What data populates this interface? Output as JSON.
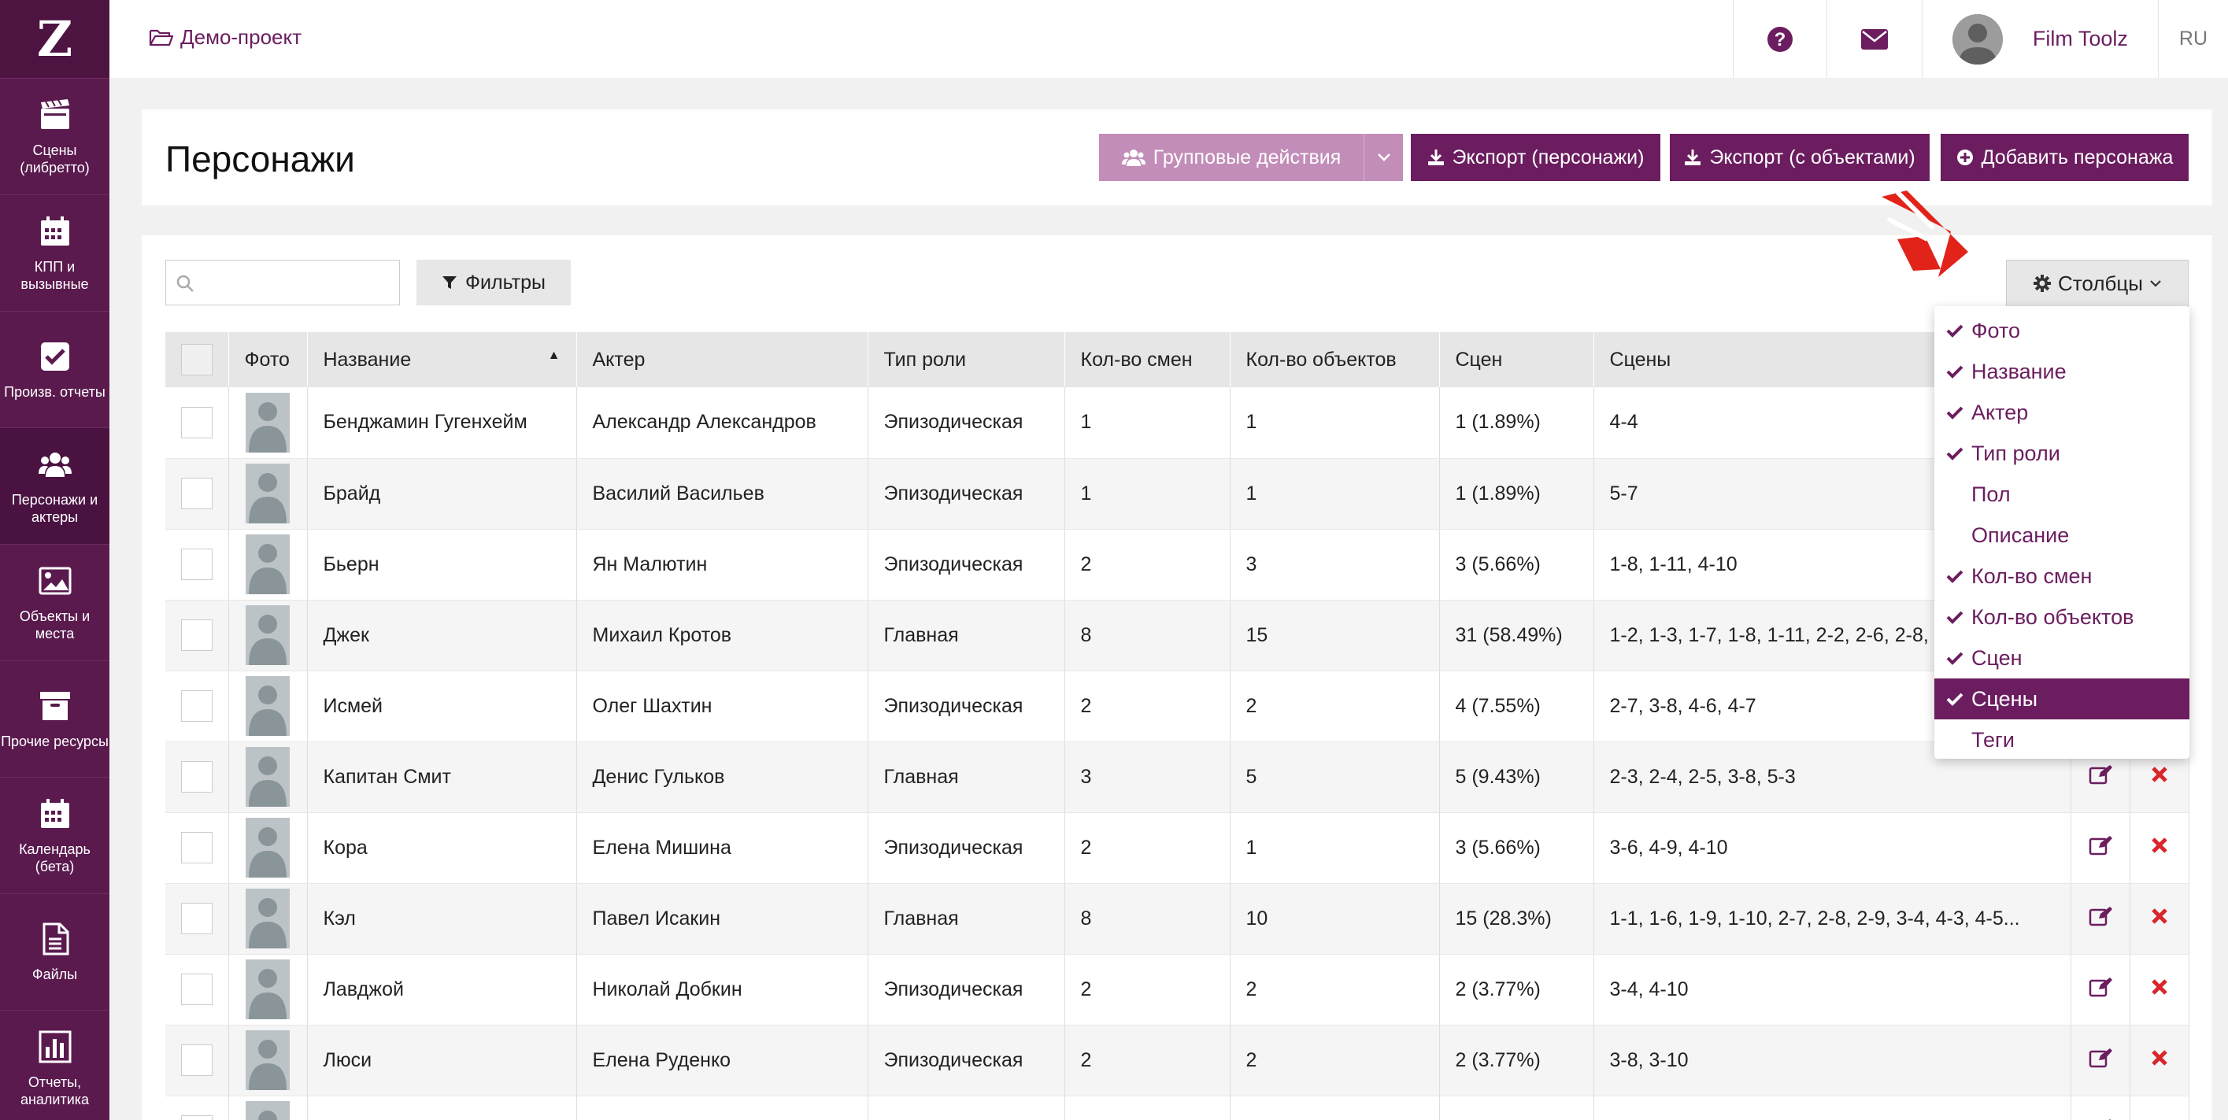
{
  "sidebar": {
    "logo": "Z",
    "items": [
      {
        "label": "Сцены (либретто)",
        "icon": "clapperboard-icon"
      },
      {
        "label": "КПП и вызывные",
        "icon": "calendar-icon"
      },
      {
        "label": "Произв. отчеты",
        "icon": "checkbox-icon"
      },
      {
        "label": "Персонажи и актеры",
        "icon": "users-icon"
      },
      {
        "label": "Объекты и места",
        "icon": "image-icon"
      },
      {
        "label": "Прочие ресурсы",
        "icon": "archive-icon"
      },
      {
        "label": "Календарь (бета)",
        "icon": "calendar-icon"
      },
      {
        "label": "Файлы",
        "icon": "file-icon"
      },
      {
        "label": "Отчеты, аналитика",
        "icon": "bar-chart-icon"
      }
    ]
  },
  "topbar": {
    "project": "Демо-проект",
    "username": "Film Toolz",
    "lang": "RU"
  },
  "header": {
    "title": "Персонажи",
    "group_actions": "Групповые действия",
    "export_characters": "Экспорт (персонажи)",
    "export_objects": "Экспорт (с объектами)",
    "add_character": "Добавить персонажа"
  },
  "toolbar": {
    "search_placeholder": "",
    "filters": "Фильтры",
    "columns": "Столбцы"
  },
  "table": {
    "headers": {
      "photo": "Фото",
      "name": "Название",
      "actor": "Актер",
      "role": "Тип роли",
      "shifts": "Кол-во смен",
      "objects": "Кол-во объектов",
      "scene_count": "Сцен",
      "scenes": "Сцены"
    },
    "rows": [
      {
        "name": "Бенджамин Гугенхейм",
        "actor": "Александр Александров",
        "role": "Эпизодическая",
        "shifts": "1",
        "objects": "1",
        "scene_count": "1 (1.89%)",
        "scenes": "4-4"
      },
      {
        "name": "Брайд",
        "actor": "Василий Васильев",
        "role": "Эпизодическая",
        "shifts": "1",
        "objects": "1",
        "scene_count": "1 (1.89%)",
        "scenes": "5-7"
      },
      {
        "name": "Бьерн",
        "actor": "Ян Малютин",
        "role": "Эпизодическая",
        "shifts": "2",
        "objects": "3",
        "scene_count": "3 (5.66%)",
        "scenes": "1-8, 1-11, 4-10"
      },
      {
        "name": "Джек",
        "actor": "Михаил Кротов",
        "role": "Главная",
        "shifts": "8",
        "objects": "15",
        "scene_count": "31 (58.49%)",
        "scenes": "1-2, 1-3, 1-7, 1-8, 1-11, 2-2, 2-6, 2-8, 3-2, 3-..."
      },
      {
        "name": "Исмей",
        "actor": "Олег Шахтин",
        "role": "Эпизодическая",
        "shifts": "2",
        "objects": "2",
        "scene_count": "4 (7.55%)",
        "scenes": "2-7, 3-8, 4-6, 4-7"
      },
      {
        "name": "Капитан Смит",
        "actor": "Денис Гульков",
        "role": "Главная",
        "shifts": "3",
        "objects": "5",
        "scene_count": "5 (9.43%)",
        "scenes": "2-3, 2-4, 2-5, 3-8, 5-3"
      },
      {
        "name": "Кора",
        "actor": "Елена Мишина",
        "role": "Эпизодическая",
        "shifts": "2",
        "objects": "1",
        "scene_count": "3 (5.66%)",
        "scenes": "3-6, 4-9, 4-10"
      },
      {
        "name": "Кэл",
        "actor": "Павел Исакин",
        "role": "Главная",
        "shifts": "8",
        "objects": "10",
        "scene_count": "15 (28.3%)",
        "scenes": "1-1, 1-6, 1-9, 1-10, 2-7, 2-8, 2-9, 3-4, 4-3, 4-5..."
      },
      {
        "name": "Лавджой",
        "actor": "Николай Добкин",
        "role": "Эпизодическая",
        "shifts": "2",
        "objects": "2",
        "scene_count": "2 (3.77%)",
        "scenes": "3-4, 4-10"
      },
      {
        "name": "Люси",
        "actor": "Елена Руденко",
        "role": "Эпизодическая",
        "shifts": "2",
        "objects": "2",
        "scene_count": "2 (3.77%)",
        "scenes": "3-8, 3-10"
      },
      {
        "name": "",
        "actor": "",
        "role": "",
        "shifts": "",
        "objects": "",
        "scene_count": "",
        "scenes": ""
      }
    ]
  },
  "columns_menu": [
    {
      "label": "Фото",
      "checked": true
    },
    {
      "label": "Название",
      "checked": true
    },
    {
      "label": "Актер",
      "checked": true
    },
    {
      "label": "Тип роли",
      "checked": true
    },
    {
      "label": "Пол",
      "checked": false
    },
    {
      "label": "Описание",
      "checked": false
    },
    {
      "label": "Кол-во смен",
      "checked": true
    },
    {
      "label": "Кол-во объектов",
      "checked": true
    },
    {
      "label": "Сцен",
      "checked": true
    },
    {
      "label": "Сцены",
      "checked": true,
      "highlighted": true
    },
    {
      "label": "Теги",
      "checked": false
    }
  ],
  "colors": {
    "brand": "#6b1d5f",
    "sidebar": "#5a1a4e",
    "disabled": "#c28db8",
    "delete": "#d9262b"
  }
}
